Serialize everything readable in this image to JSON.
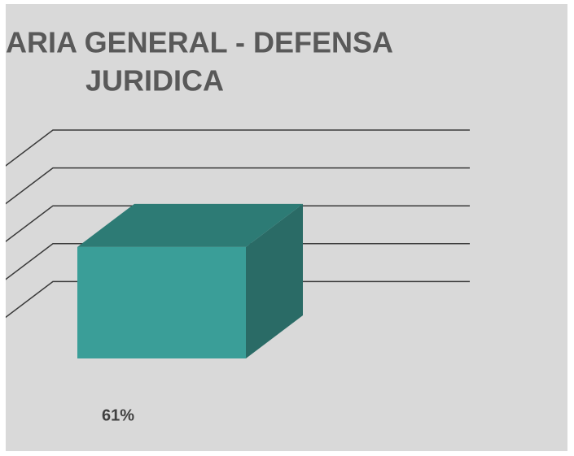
{
  "chart_data": {
    "type": "bar3d",
    "title_lines": [
      "ARIA GENERAL - DEFENSA",
      "JURIDICA"
    ],
    "categories": [
      "61%"
    ],
    "values": [
      61
    ],
    "color": "#3a9e98",
    "ylim": [
      0,
      100
    ],
    "yticks": [
      20,
      40,
      60,
      80,
      100
    ],
    "grid": true
  }
}
